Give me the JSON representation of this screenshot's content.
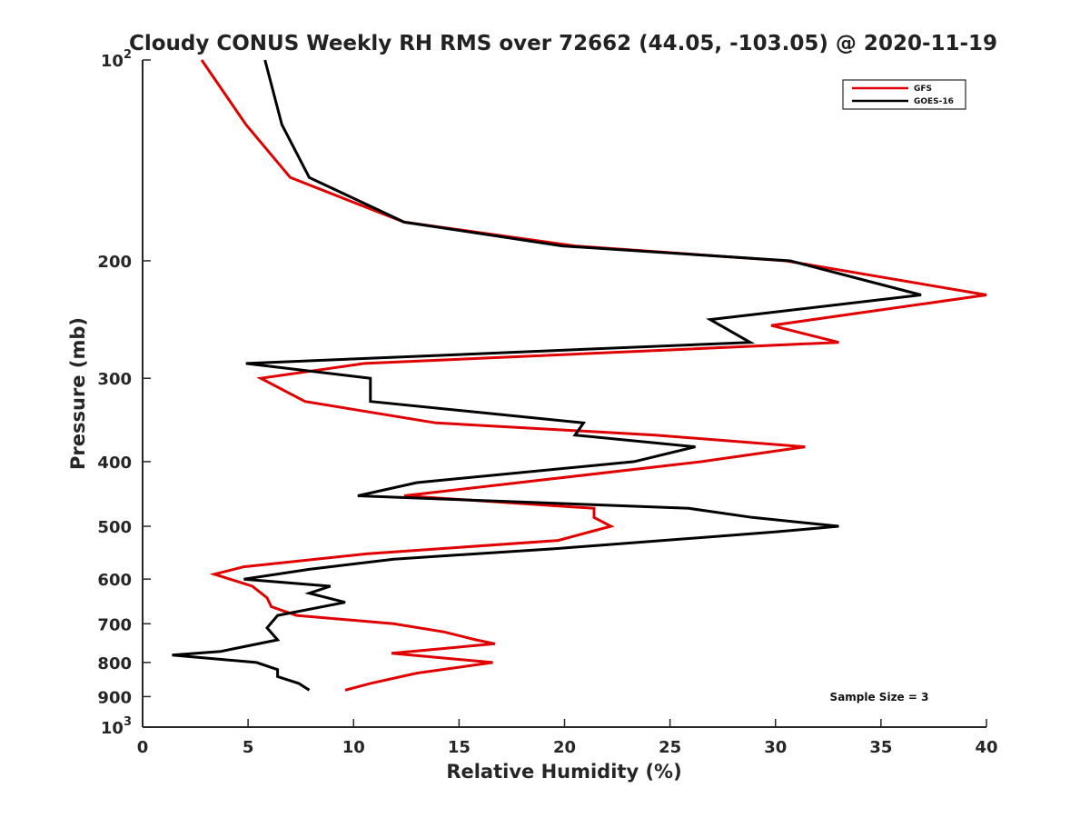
{
  "chart_data": {
    "type": "line",
    "title": "Cloudy CONUS Weekly RH RMS over 72662 (44.05, -103.05) @ 2020-11-19",
    "xlabel": "Relative Humidity (%)",
    "ylabel": "Pressure (mb)",
    "xlim": [
      0,
      40
    ],
    "ylim": [
      100,
      1000
    ],
    "yscale": "log",
    "yreversed": true,
    "grid": false,
    "legend_position": "top-right",
    "x_ticks": [
      0,
      5,
      10,
      15,
      20,
      25,
      30,
      35,
      40
    ],
    "x_tick_labels": [
      "0",
      "5",
      "10",
      "15",
      "20",
      "25",
      "30",
      "35",
      "40"
    ],
    "y_ticks": [
      100,
      200,
      300,
      400,
      500,
      600,
      700,
      800,
      900,
      1000
    ],
    "y_tick_labels": [
      {
        "base": "10",
        "exp": "2"
      },
      {
        "base": "200",
        "exp": ""
      },
      {
        "base": "300",
        "exp": ""
      },
      {
        "base": "400",
        "exp": ""
      },
      {
        "base": "500",
        "exp": ""
      },
      {
        "base": "600",
        "exp": ""
      },
      {
        "base": "700",
        "exp": ""
      },
      {
        "base": "800",
        "exp": ""
      },
      {
        "base": "900",
        "exp": ""
      },
      {
        "base": "10",
        "exp": "3"
      }
    ],
    "annotation": "Sample Size = 3",
    "series": [
      {
        "name": "GFS",
        "color": "#e00000",
        "points": [
          [
            2.8,
            100
          ],
          [
            4.9,
            125
          ],
          [
            7.0,
            150
          ],
          [
            12.4,
            175
          ],
          [
            20.5,
            190
          ],
          [
            30.5,
            200
          ],
          [
            40.0,
            225
          ],
          [
            29.8,
            250
          ],
          [
            33.0,
            265
          ],
          [
            10.5,
            285
          ],
          [
            5.6,
            300
          ],
          [
            7.7,
            325
          ],
          [
            13.9,
            350
          ],
          [
            24.3,
            365
          ],
          [
            31.4,
            380
          ],
          [
            26.5,
            400
          ],
          [
            12.4,
            450
          ],
          [
            21.4,
            470
          ],
          [
            21.4,
            485
          ],
          [
            22.2,
            500
          ],
          [
            19.7,
            525
          ],
          [
            10.6,
            550
          ],
          [
            4.8,
            575
          ],
          [
            3.4,
            590
          ],
          [
            5.2,
            615
          ],
          [
            5.9,
            640
          ],
          [
            6.1,
            660
          ],
          [
            7.3,
            680
          ],
          [
            11.9,
            700
          ],
          [
            14.3,
            720
          ],
          [
            15.8,
            740
          ],
          [
            16.7,
            750
          ],
          [
            11.8,
            775
          ],
          [
            16.6,
            800
          ],
          [
            13.0,
            830
          ],
          [
            10.8,
            860
          ],
          [
            9.6,
            880
          ]
        ]
      },
      {
        "name": "GOES-16",
        "color": "#000000",
        "points": [
          [
            5.8,
            100
          ],
          [
            6.6,
            125
          ],
          [
            7.9,
            150
          ],
          [
            12.4,
            175
          ],
          [
            19.9,
            190
          ],
          [
            30.7,
            200
          ],
          [
            36.9,
            225
          ],
          [
            26.9,
            245
          ],
          [
            28.8,
            265
          ],
          [
            4.9,
            285
          ],
          [
            10.8,
            300
          ],
          [
            10.8,
            325
          ],
          [
            20.9,
            350
          ],
          [
            20.5,
            365
          ],
          [
            26.2,
            380
          ],
          [
            23.3,
            400
          ],
          [
            13.0,
            430
          ],
          [
            10.2,
            450
          ],
          [
            25.9,
            470
          ],
          [
            28.9,
            485
          ],
          [
            33.0,
            500
          ],
          [
            29.9,
            510
          ],
          [
            19.6,
            540
          ],
          [
            11.9,
            560
          ],
          [
            7.9,
            580
          ],
          [
            4.8,
            600
          ],
          [
            8.9,
            615
          ],
          [
            7.9,
            630
          ],
          [
            9.6,
            650
          ],
          [
            6.4,
            680
          ],
          [
            5.9,
            710
          ],
          [
            6.4,
            740
          ],
          [
            3.7,
            770
          ],
          [
            1.4,
            780
          ],
          [
            5.4,
            800
          ],
          [
            6.4,
            820
          ],
          [
            6.4,
            840
          ],
          [
            7.4,
            860
          ],
          [
            7.9,
            880
          ]
        ]
      }
    ]
  }
}
